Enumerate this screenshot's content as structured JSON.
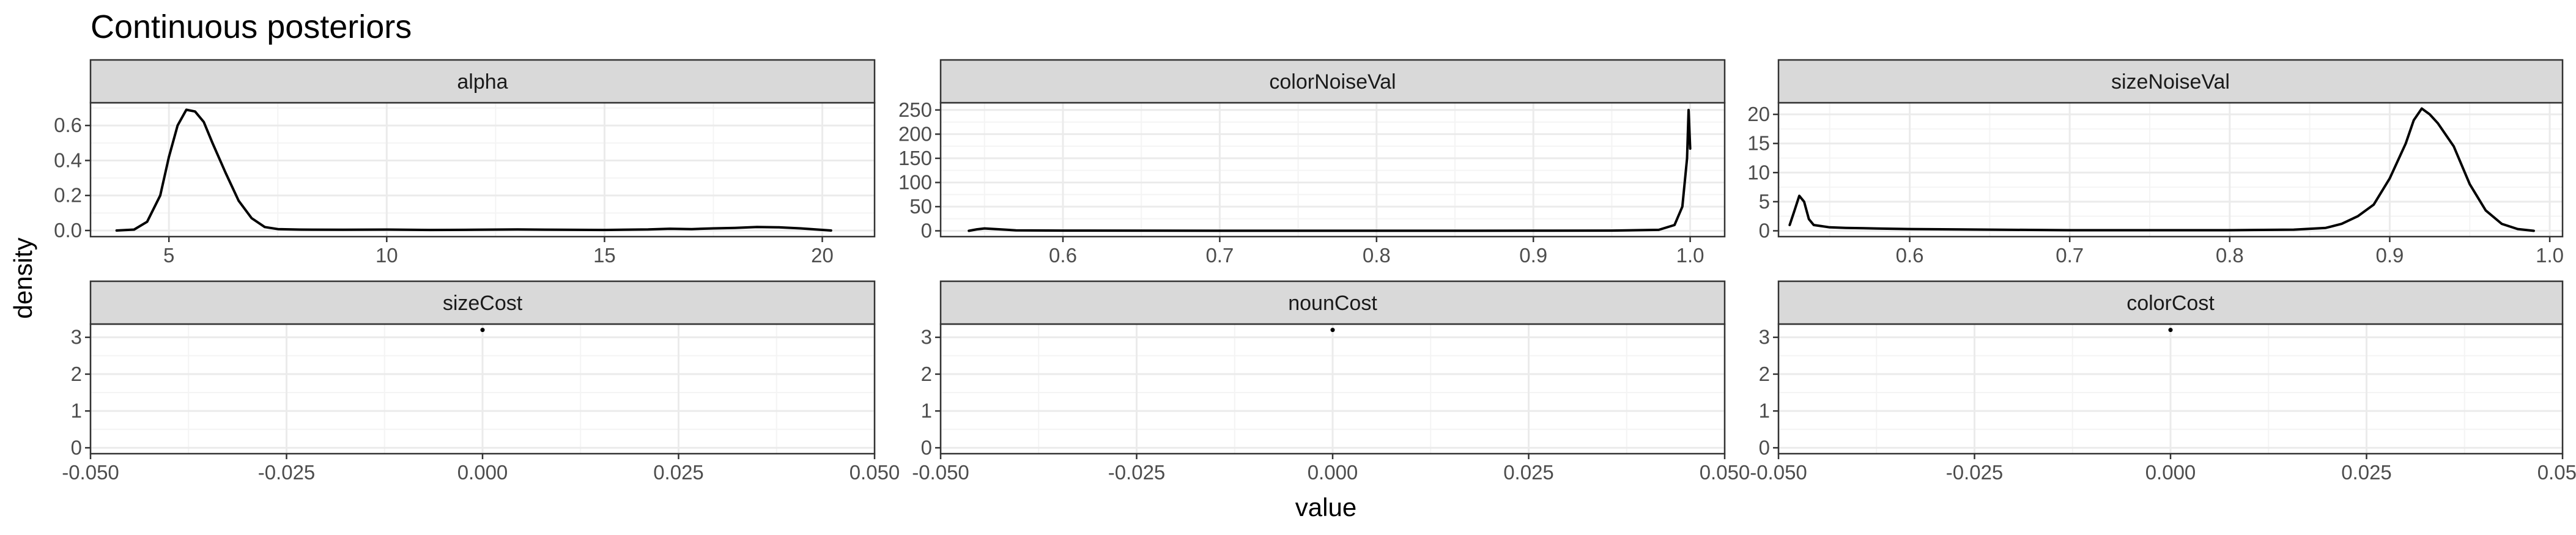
{
  "chart_data": {
    "title": "Continuous posteriors",
    "xlabel": "value",
    "ylabel": "density",
    "layout": "facet-grid 2 rows x 3 columns",
    "theme": "bw",
    "grid": true,
    "colors": {
      "line": "#000000",
      "strip_fill": "#d9d9d9",
      "strip_border": "#333333",
      "grid_major": "#ebebeb",
      "grid_minor": "#f4f4f4",
      "panel_border": "#333333"
    },
    "panels": [
      {
        "name": "alpha",
        "type": "line",
        "xlim": [
          3.2,
          21.2
        ],
        "ylim": [
          -0.035,
          0.73
        ],
        "xticks": [
          5,
          10,
          15,
          20
        ],
        "xtick_labels": [
          "5",
          "10",
          "15",
          "20"
        ],
        "yticks": [
          0.0,
          0.2,
          0.4,
          0.6
        ],
        "ytick_labels": [
          "0.0",
          "0.2",
          "0.4",
          "0.6"
        ],
        "x": [
          3.8,
          4.2,
          4.5,
          4.8,
          5.0,
          5.2,
          5.4,
          5.6,
          5.8,
          6.0,
          6.3,
          6.6,
          6.9,
          7.2,
          7.5,
          8.0,
          9.0,
          10.0,
          11.0,
          12.0,
          13.0,
          14.0,
          15.0,
          16.0,
          16.5,
          17.0,
          17.5,
          18.0,
          18.5,
          19.0,
          19.5,
          20.2
        ],
        "y": [
          0.0,
          0.005,
          0.05,
          0.2,
          0.42,
          0.6,
          0.69,
          0.68,
          0.62,
          0.5,
          0.33,
          0.17,
          0.07,
          0.02,
          0.008,
          0.005,
          0.004,
          0.005,
          0.003,
          0.004,
          0.006,
          0.004,
          0.003,
          0.006,
          0.01,
          0.008,
          0.012,
          0.015,
          0.02,
          0.018,
          0.012,
          0.0
        ]
      },
      {
        "name": "colorNoiseVal",
        "type": "line",
        "xlim": [
          0.522,
          1.022
        ],
        "ylim": [
          -12,
          265
        ],
        "xticks": [
          0.6,
          0.7,
          0.8,
          0.9,
          1.0
        ],
        "xtick_labels": [
          "0.6",
          "0.7",
          "0.8",
          "0.9",
          "1.0"
        ],
        "yticks": [
          0,
          50,
          100,
          150,
          200,
          250
        ],
        "ytick_labels": [
          "0",
          "50",
          "100",
          "150",
          "200",
          "250"
        ],
        "x": [
          0.54,
          0.545,
          0.55,
          0.56,
          0.57,
          0.6,
          0.7,
          0.8,
          0.9,
          0.95,
          0.98,
          0.99,
          0.995,
          0.998,
          0.999,
          1.0
        ],
        "y": [
          0,
          3,
          5,
          3,
          1,
          0.5,
          0.2,
          0.2,
          0.3,
          0.5,
          2,
          12,
          50,
          150,
          250,
          170
        ]
      },
      {
        "name": "sizeNoiseVal",
        "type": "line",
        "xlim": [
          0.518,
          1.008
        ],
        "ylim": [
          -1,
          22
        ],
        "xticks": [
          0.6,
          0.7,
          0.8,
          0.9,
          1.0
        ],
        "xtick_labels": [
          "0.6",
          "0.7",
          "0.8",
          "0.9",
          "1.0"
        ],
        "yticks": [
          0,
          5,
          10,
          15,
          20
        ],
        "ytick_labels": [
          "0",
          "5",
          "10",
          "15",
          "20"
        ],
        "x": [
          0.525,
          0.528,
          0.531,
          0.534,
          0.537,
          0.54,
          0.545,
          0.55,
          0.56,
          0.58,
          0.6,
          0.65,
          0.7,
          0.75,
          0.8,
          0.84,
          0.86,
          0.87,
          0.88,
          0.89,
          0.9,
          0.91,
          0.915,
          0.92,
          0.925,
          0.93,
          0.94,
          0.95,
          0.96,
          0.97,
          0.98,
          0.99
        ],
        "y": [
          1.0,
          3.5,
          6.0,
          5.0,
          2.0,
          1.0,
          0.8,
          0.6,
          0.5,
          0.4,
          0.3,
          0.2,
          0.1,
          0.1,
          0.1,
          0.2,
          0.5,
          1.2,
          2.5,
          4.5,
          9,
          15,
          19,
          21,
          20,
          18.5,
          14.5,
          8,
          3.5,
          1.2,
          0.3,
          0.0
        ]
      },
      {
        "name": "sizeCost",
        "type": "point",
        "xlim": [
          -0.05,
          0.05
        ],
        "ylim": [
          -0.16,
          3.36
        ],
        "xticks": [
          -0.05,
          -0.025,
          0.0,
          0.025,
          0.05
        ],
        "xtick_labels": [
          "-0.050",
          "-0.025",
          "0.000",
          "0.025",
          "0.050"
        ],
        "yticks": [
          0,
          1,
          2,
          3
        ],
        "ytick_labels": [
          "0",
          "1",
          "2",
          "3"
        ],
        "x": [
          0.0
        ],
        "y": [
          3.2
        ]
      },
      {
        "name": "nounCost",
        "type": "point",
        "xlim": [
          -0.05,
          0.05
        ],
        "ylim": [
          -0.16,
          3.36
        ],
        "xticks": [
          -0.05,
          -0.025,
          0.0,
          0.025,
          0.05
        ],
        "xtick_labels": [
          "-0.050",
          "-0.025",
          "0.000",
          "0.025",
          "0.050"
        ],
        "yticks": [
          0,
          1,
          2,
          3
        ],
        "ytick_labels": [
          "0",
          "1",
          "2",
          "3"
        ],
        "x": [
          0.0
        ],
        "y": [
          3.2
        ]
      },
      {
        "name": "colorCost",
        "type": "point",
        "xlim": [
          -0.05,
          0.05
        ],
        "ylim": [
          -0.16,
          3.36
        ],
        "xticks": [
          -0.05,
          -0.025,
          0.0,
          0.025,
          0.05
        ],
        "xtick_labels": [
          "-0.050",
          "-0.025",
          "0.000",
          "0.025",
          "0.050"
        ],
        "yticks": [
          0,
          1,
          2,
          3
        ],
        "ytick_labels": [
          "0",
          "1",
          "2",
          "3"
        ],
        "x": [
          0.0
        ],
        "y": [
          3.2
        ]
      }
    ]
  }
}
